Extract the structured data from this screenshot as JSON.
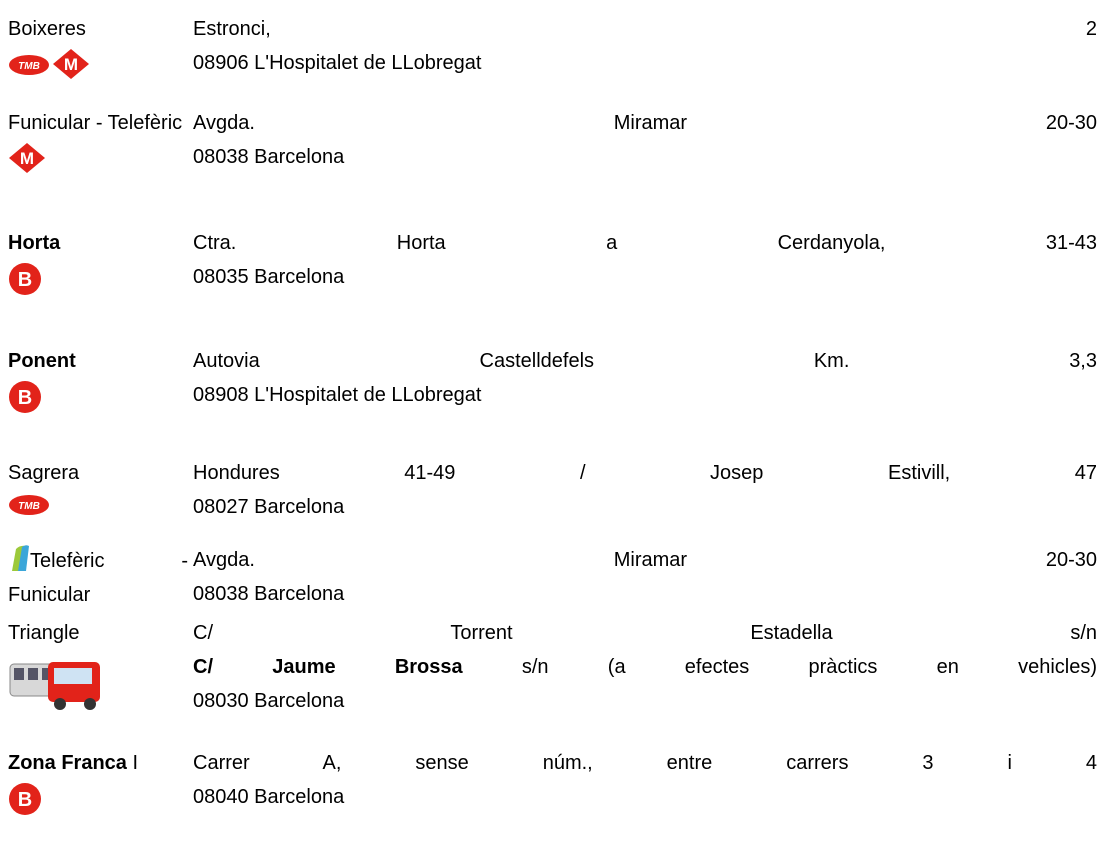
{
  "rows": [
    {
      "name": "Boixeres",
      "address": [
        "Estronci, 2",
        "08906 L'Hospitalet de LLobregat"
      ]
    },
    {
      "name": "Funicular - Telefèric",
      "address": [
        "Avgda. Miramar 20-30",
        "08038 Barcelona"
      ]
    },
    {
      "name": "Horta",
      "address": [
        "Ctra. Horta a Cerdanyola, 31-43",
        "08035 Barcelona"
      ]
    },
    {
      "name": "Ponent",
      "address": [
        "Autovia Castelldefels Km. 3,3",
        "08908 L'Hospitalet de LLobregat"
      ]
    },
    {
      "name": "Sagrera",
      "address": [
        "Hondures 41-49 / Josep Estivill, 47",
        "08027 Barcelona"
      ]
    },
    {
      "name": "Telefèric - Funicular",
      "address": [
        "Avgda. Miramar 20-30",
        "08038 Barcelona"
      ]
    },
    {
      "name": "Triangle",
      "address": [
        "C/ Torrent Estadella s/n",
        {
          "bold": "C/ Jaume Brossa",
          "text": "s/n (a efectes pràctics en vehicles)"
        },
        "08030 Barcelona"
      ]
    },
    {
      "name": "Zona Franca",
      "suffix": "I",
      "address": [
        "Carrer A, sense núm., entre carrers 3 i 4",
        "08040 Barcelona"
      ]
    }
  ]
}
